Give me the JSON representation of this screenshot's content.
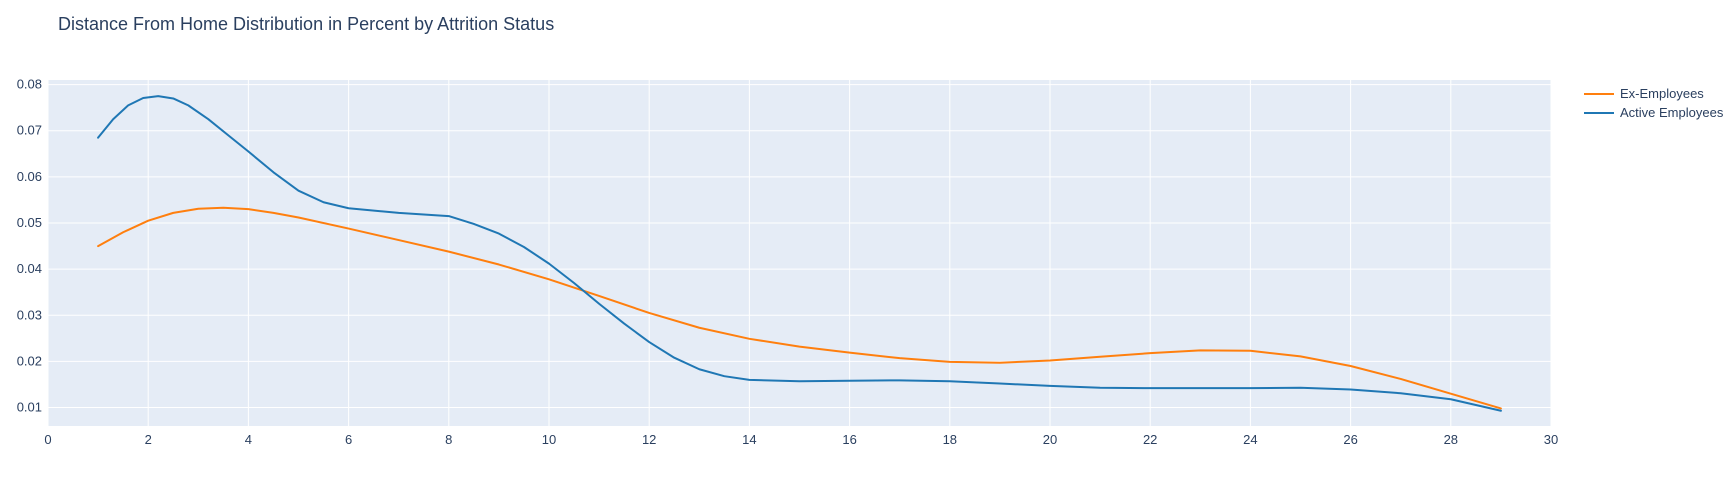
{
  "chart_data": {
    "type": "line",
    "title": "Distance From Home Distribution in Percent by Attrition Status",
    "xlabel": "",
    "ylabel": "",
    "xlim": [
      0,
      30
    ],
    "ylim": [
      0.006,
      0.081
    ],
    "xticks": [
      0,
      2,
      4,
      6,
      8,
      10,
      12,
      14,
      16,
      18,
      20,
      22,
      24,
      26,
      28,
      30
    ],
    "yticks": [
      0.01,
      0.02,
      0.03,
      0.04,
      0.05,
      0.06,
      0.07,
      0.08
    ],
    "grid": true,
    "legend_position": "top-right",
    "series": [
      {
        "name": "Ex-Employees",
        "color": "#ff7f0e",
        "x": [
          1,
          1.5,
          2,
          2.5,
          3,
          3.5,
          4,
          4.5,
          5,
          6,
          7,
          8,
          9,
          10,
          11,
          12,
          13,
          14,
          15,
          16,
          17,
          18,
          19,
          20,
          21,
          22,
          23,
          24,
          25,
          26,
          27,
          28,
          29
        ],
        "y": [
          0.045,
          0.048,
          0.0505,
          0.0522,
          0.0531,
          0.0533,
          0.053,
          0.0522,
          0.0512,
          0.0488,
          0.0463,
          0.0438,
          0.041,
          0.0378,
          0.0342,
          0.0305,
          0.0273,
          0.0249,
          0.0232,
          0.0219,
          0.0207,
          0.0199,
          0.0197,
          0.0202,
          0.021,
          0.0218,
          0.0224,
          0.0223,
          0.0211,
          0.019,
          0.0162,
          0.013,
          0.0098
        ]
      },
      {
        "name": "Active Employees",
        "color": "#1f77b4",
        "x": [
          1,
          1.3,
          1.6,
          1.9,
          2.2,
          2.5,
          2.8,
          3.2,
          3.6,
          4,
          4.5,
          5,
          5.5,
          6,
          7,
          8,
          8.5,
          9,
          9.5,
          10,
          10.5,
          11,
          11.5,
          12,
          12.5,
          13,
          13.5,
          14,
          15,
          16,
          17,
          18,
          19,
          20,
          21,
          22,
          23,
          24,
          25,
          26,
          27,
          28,
          29
        ],
        "y": [
          0.0685,
          0.0725,
          0.0755,
          0.0771,
          0.0775,
          0.077,
          0.0755,
          0.0725,
          0.069,
          0.0655,
          0.061,
          0.057,
          0.0545,
          0.0532,
          0.0522,
          0.0515,
          0.0498,
          0.0477,
          0.0448,
          0.0412,
          0.037,
          0.0325,
          0.0282,
          0.0242,
          0.0208,
          0.0183,
          0.0168,
          0.016,
          0.0157,
          0.0158,
          0.0159,
          0.0157,
          0.0152,
          0.0147,
          0.0143,
          0.0142,
          0.0142,
          0.0142,
          0.0143,
          0.0139,
          0.0131,
          0.0118,
          0.0093
        ]
      }
    ]
  }
}
